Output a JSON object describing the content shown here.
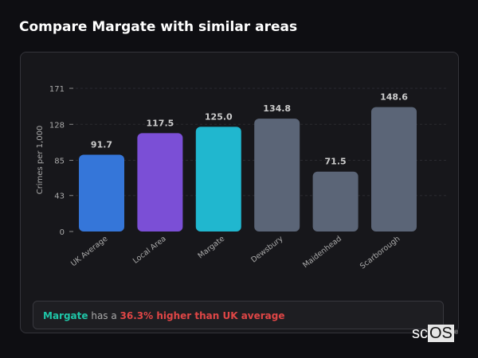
{
  "title": "Compare Margate with similar areas",
  "chart_data": {
    "type": "bar",
    "ylabel": "Crimes per 1,000",
    "xlabel": "",
    "ylim": [
      0,
      171
    ],
    "yticks": [
      0,
      43,
      85,
      128,
      171
    ],
    "grid": true,
    "categories": [
      "UK Average",
      "Local Area",
      "Margate",
      "Dewsbury",
      "Maidenhead",
      "Scarborough"
    ],
    "values": [
      91.7,
      117.5,
      125.0,
      134.8,
      71.5,
      148.6
    ],
    "value_labels": [
      "91.7",
      "117.5",
      "125.0",
      "134.8",
      "71.5",
      "148.6"
    ],
    "colors": [
      "#3576d9",
      "#7b4fd6",
      "#20b7cf",
      "#5b6577",
      "#5b6577",
      "#5b6577"
    ]
  },
  "summary": {
    "subject": "Margate",
    "middle": " has a ",
    "highlight": "36.3% higher than UK average"
  },
  "logo": {
    "text_a": "sc",
    "text_b": "OS",
    "mark": "®"
  }
}
